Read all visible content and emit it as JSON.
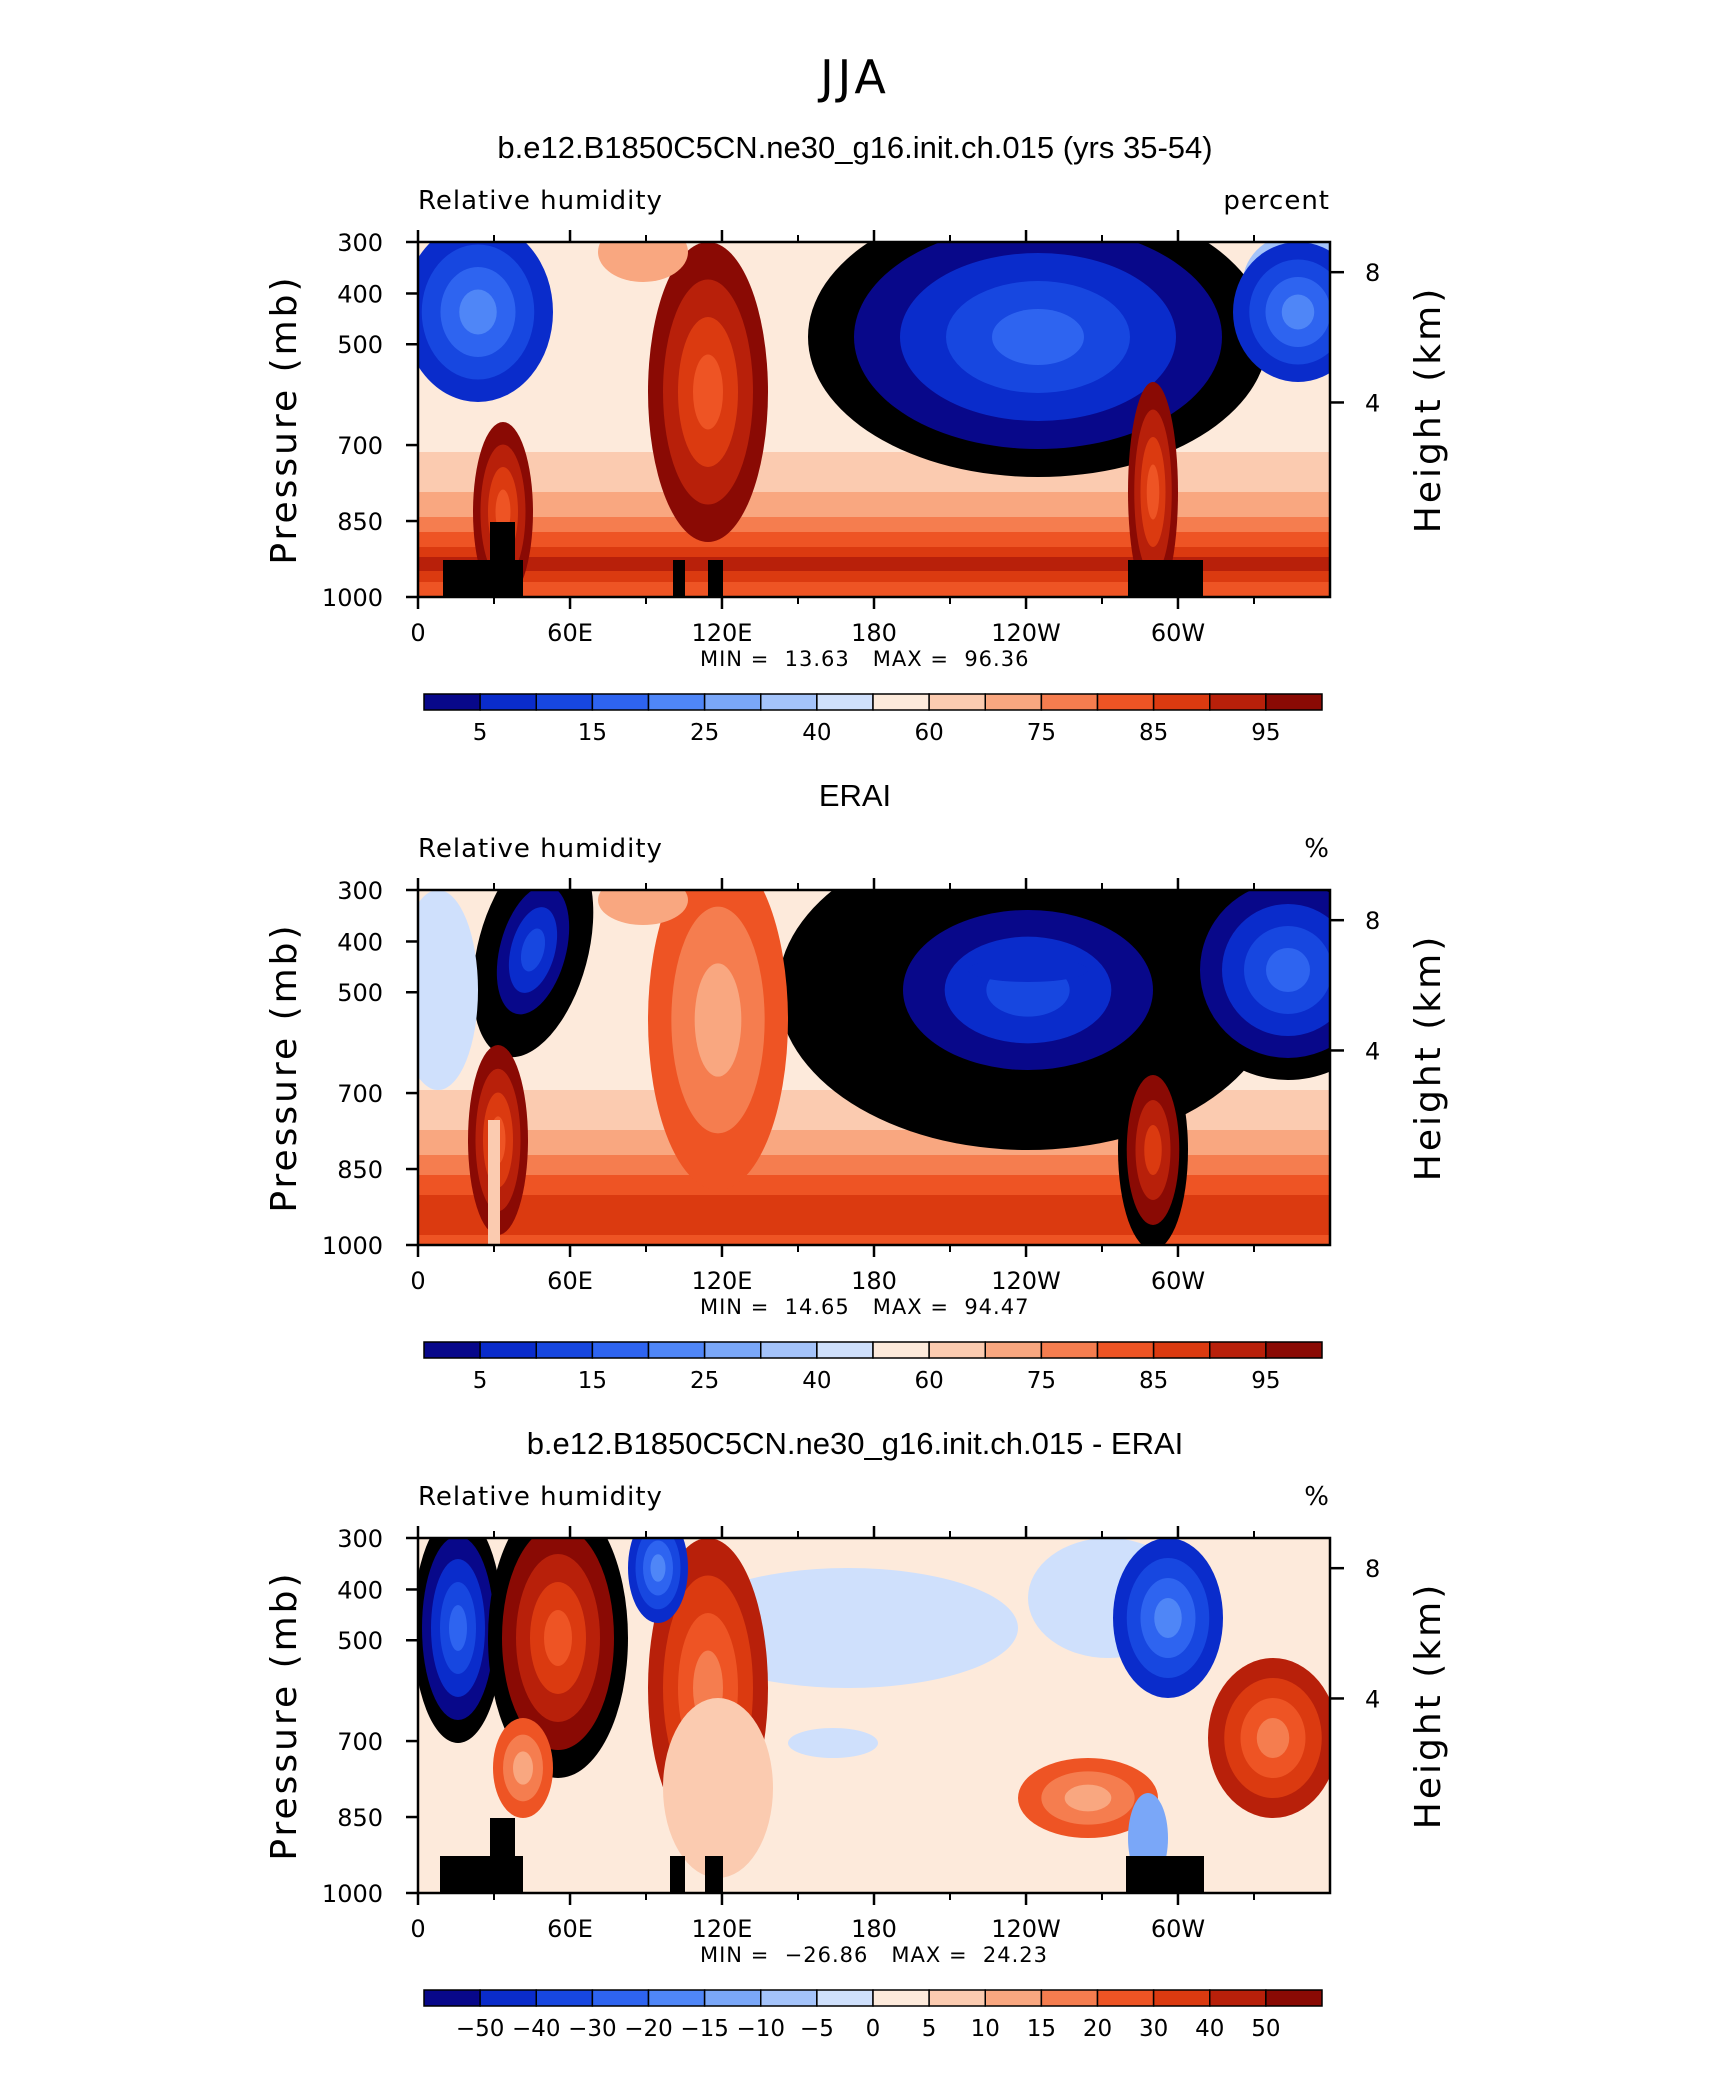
{
  "figure": {
    "title": "JJA"
  },
  "chart_data": [
    {
      "type": "heatmap",
      "title": "b.e12.B1850C5CN.ne30_g16.init.ch.015 (yrs 35-54)",
      "left_label": "Relative humidity",
      "units": "percent",
      "ylabel": "Pressure (mb)",
      "ylabel_right": "Height (km)",
      "y_ticks": [
        "300",
        "400",
        "500",
        "700",
        "850",
        "1000"
      ],
      "y_right_ticks": [
        "8",
        "4"
      ],
      "x_ticks": [
        "0",
        "60E",
        "120E",
        "180",
        "120W",
        "60W"
      ],
      "min": "13.63",
      "max": "96.36",
      "colorbar_labels": [
        "5",
        "15",
        "25",
        "40",
        "60",
        "75",
        "85",
        "95"
      ],
      "colors": [
        "#08088a",
        "#0a2ccb",
        "#1747e0",
        "#2e64f0",
        "#4f86f7",
        "#7aa7f8",
        "#a4c3fa",
        "#cfe0fc",
        "#fdeadb",
        "#fbcbb0",
        "#f9a780",
        "#f57d4f",
        "#ee5424",
        "#db3a10",
        "#b8200a",
        "#8a0a04"
      ]
    },
    {
      "type": "heatmap",
      "title": "ERAI",
      "left_label": "Relative humidity",
      "units": "%",
      "ylabel": "Pressure (mb)",
      "ylabel_right": "Height (km)",
      "y_ticks": [
        "300",
        "400",
        "500",
        "700",
        "850",
        "1000"
      ],
      "y_right_ticks": [
        "8",
        "4"
      ],
      "x_ticks": [
        "0",
        "60E",
        "120E",
        "180",
        "120W",
        "60W"
      ],
      "min": "14.65",
      "max": "94.47",
      "colorbar_labels": [
        "5",
        "15",
        "25",
        "40",
        "60",
        "75",
        "85",
        "95"
      ],
      "colors": [
        "#08088a",
        "#0a2ccb",
        "#1747e0",
        "#2e64f0",
        "#4f86f7",
        "#7aa7f8",
        "#a4c3fa",
        "#cfe0fc",
        "#fdeadb",
        "#fbcbb0",
        "#f9a780",
        "#f57d4f",
        "#ee5424",
        "#db3a10",
        "#b8200a",
        "#8a0a04"
      ]
    },
    {
      "type": "heatmap",
      "title": "b.e12.B1850C5CN.ne30_g16.init.ch.015 - ERAI",
      "left_label": "Relative humidity",
      "units": "%",
      "ylabel": "Pressure (mb)",
      "ylabel_right": "Height (km)",
      "y_ticks": [
        "300",
        "400",
        "500",
        "700",
        "850",
        "1000"
      ],
      "y_right_ticks": [
        "8",
        "4"
      ],
      "x_ticks": [
        "0",
        "60E",
        "120E",
        "180",
        "120W",
        "60W"
      ],
      "min": "−26.86",
      "max": "24.23",
      "colorbar_labels": [
        "−50",
        "−40",
        "−30",
        "−20",
        "−15",
        "−10",
        "−5",
        "0",
        "5",
        "10",
        "15",
        "20",
        "30",
        "40",
        "50"
      ],
      "colors": [
        "#08088a",
        "#0a2ccb",
        "#1747e0",
        "#2e64f0",
        "#4f86f7",
        "#7aa7f8",
        "#a4c3fa",
        "#cfe0fc",
        "#fdeadb",
        "#fbcbb0",
        "#f9a780",
        "#f57d4f",
        "#ee5424",
        "#db3a10",
        "#b8200a",
        "#8a0a04"
      ]
    }
  ]
}
